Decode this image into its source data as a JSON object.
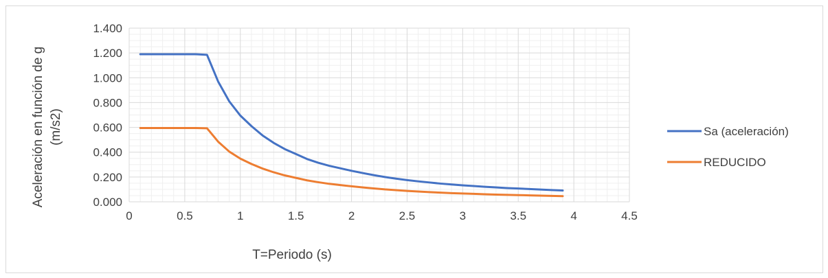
{
  "chart_data": {
    "type": "line",
    "title": "",
    "xlabel": "T=Periodo (s)",
    "ylabel_lines": [
      "Aceleración en función de g",
      "(m/s2)"
    ],
    "xlim": [
      0,
      4.5
    ],
    "ylim": [
      0,
      1.4
    ],
    "x_ticks": [
      "0",
      "0.5",
      "1",
      "1.5",
      "2",
      "2.5",
      "3",
      "3.5",
      "4",
      "4.5"
    ],
    "y_ticks": [
      "0.000",
      "0.200",
      "0.400",
      "0.600",
      "0.800",
      "1.000",
      "1.200",
      "1.400"
    ],
    "grid": true,
    "legend_position": "right",
    "x": [
      0.1,
      0.2,
      0.3,
      0.4,
      0.5,
      0.6,
      0.7,
      0.8,
      0.9,
      1.0,
      1.1,
      1.2,
      1.3,
      1.4,
      1.5,
      1.6,
      1.7,
      1.8,
      1.9,
      2.0,
      2.1,
      2.2,
      2.3,
      2.4,
      2.5,
      2.6,
      2.7,
      2.8,
      2.9,
      3.0,
      3.1,
      3.2,
      3.3,
      3.4,
      3.5,
      3.6,
      3.7,
      3.8,
      3.9
    ],
    "series": [
      {
        "name": "Sa (aceleración)",
        "color": "#4472c4",
        "values": [
          1.19,
          1.19,
          1.19,
          1.19,
          1.19,
          1.19,
          1.185,
          0.97,
          0.81,
          0.695,
          0.61,
          0.535,
          0.475,
          0.425,
          0.385,
          0.345,
          0.315,
          0.29,
          0.27,
          0.25,
          0.232,
          0.215,
          0.2,
          0.187,
          0.175,
          0.165,
          0.156,
          0.147,
          0.14,
          0.133,
          0.127,
          0.121,
          0.116,
          0.111,
          0.107,
          0.103,
          0.099,
          0.095,
          0.091
        ]
      },
      {
        "name": "REDUCIDO",
        "color": "#ed7d31",
        "values": [
          0.595,
          0.595,
          0.595,
          0.595,
          0.595,
          0.595,
          0.593,
          0.485,
          0.405,
          0.348,
          0.305,
          0.268,
          0.238,
          0.213,
          0.193,
          0.173,
          0.158,
          0.145,
          0.135,
          0.125,
          0.116,
          0.108,
          0.1,
          0.094,
          0.088,
          0.083,
          0.078,
          0.074,
          0.07,
          0.067,
          0.064,
          0.061,
          0.058,
          0.056,
          0.054,
          0.052,
          0.05,
          0.048,
          0.046
        ]
      }
    ]
  }
}
